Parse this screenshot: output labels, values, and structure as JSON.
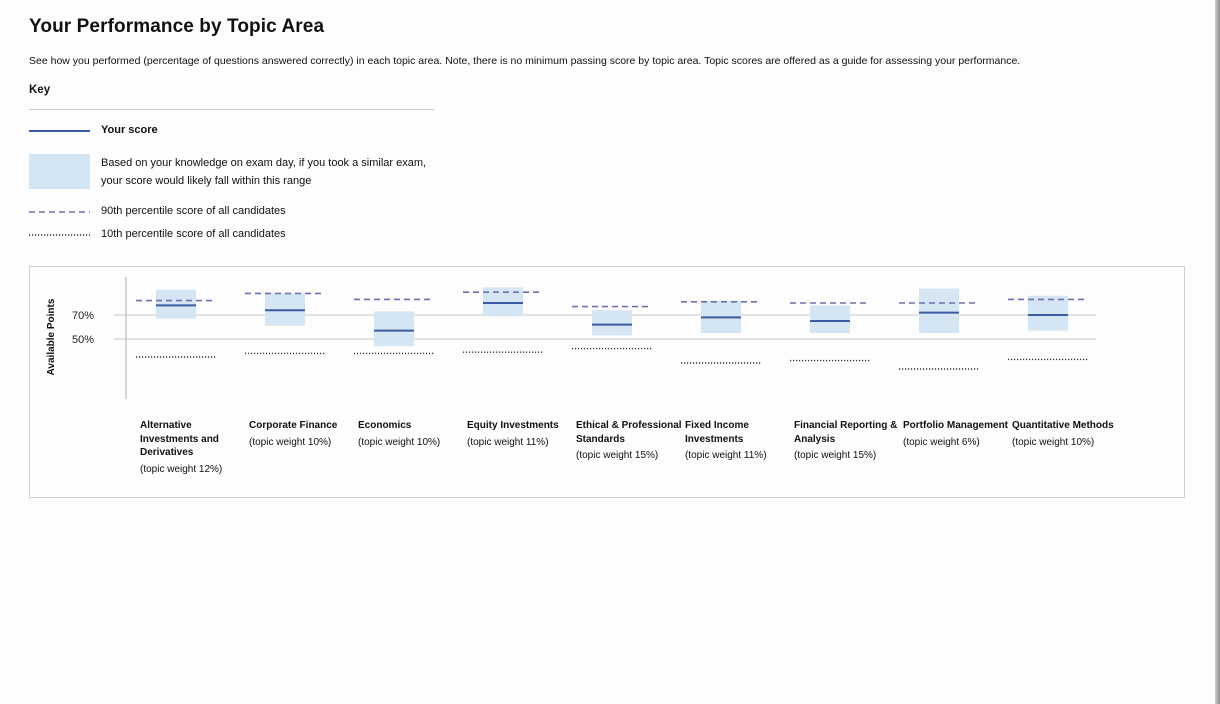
{
  "page": {
    "title": "Your Performance by Topic Area",
    "subtitle": "See how you performed (percentage of questions answered correctly) in each topic area. Note, there is no minimum passing score by topic area. Topic scores are offered as a guide for assessing your performance."
  },
  "key": {
    "heading": "Key",
    "your_score": "Your score",
    "range": "Based on your knowledge on exam day, if you took a similar exam, your score would likely fall within this range",
    "p90": "90th percentile score of all candidates",
    "p10": "10th percentile score of all candidates"
  },
  "colors": {
    "score_line": "#3b5ba5",
    "range_fill": "#d4e5f3",
    "p90_line": "#6f6fb0",
    "p10_line": "#333333",
    "gridline": "#c8c8c8"
  },
  "chart_data": {
    "type": "range",
    "ylabel": "Available Points",
    "ylim": [
      0,
      100
    ],
    "yticks": [
      {
        "value": 70,
        "label": "70%"
      },
      {
        "value": 50,
        "label": "50%"
      }
    ],
    "categories": [
      {
        "name": "Alternative Investments and Derivatives",
        "weight": "(topic weight 12%)",
        "score": 78,
        "low": 67,
        "high": 91,
        "p90": 82,
        "p10": 35
      },
      {
        "name": "Corporate Finance",
        "weight": "(topic weight 10%)",
        "score": 74,
        "low": 61,
        "high": 88,
        "p90": 88,
        "p10": 38
      },
      {
        "name": "Economics",
        "weight": "(topic weight 10%)",
        "score": 57,
        "low": 44,
        "high": 73,
        "p90": 83,
        "p10": 38
      },
      {
        "name": "Equity Investments",
        "weight": "(topic weight 11%)",
        "score": 80,
        "low": 69,
        "high": 93,
        "p90": 89,
        "p10": 39
      },
      {
        "name": "Ethical & Professional Standards",
        "weight": "(topic weight 15%)",
        "score": 62,
        "low": 53,
        "high": 74,
        "p90": 77,
        "p10": 42
      },
      {
        "name": "Fixed Income Investments",
        "weight": "(topic weight 11%)",
        "score": 68,
        "low": 55,
        "high": 82,
        "p90": 81,
        "p10": 30
      },
      {
        "name": "Financial Reporting & Analysis",
        "weight": "(topic weight 15%)",
        "score": 65,
        "low": 55,
        "high": 78,
        "p90": 80,
        "p10": 32
      },
      {
        "name": "Portfolio Management",
        "weight": "(topic weight 6%)",
        "score": 72,
        "low": 55,
        "high": 92,
        "p90": 80,
        "p10": 25
      },
      {
        "name": "Quantitative Methods",
        "weight": "(topic weight 10%)",
        "score": 70,
        "low": 57,
        "high": 86,
        "p90": 83,
        "p10": 33
      }
    ]
  }
}
